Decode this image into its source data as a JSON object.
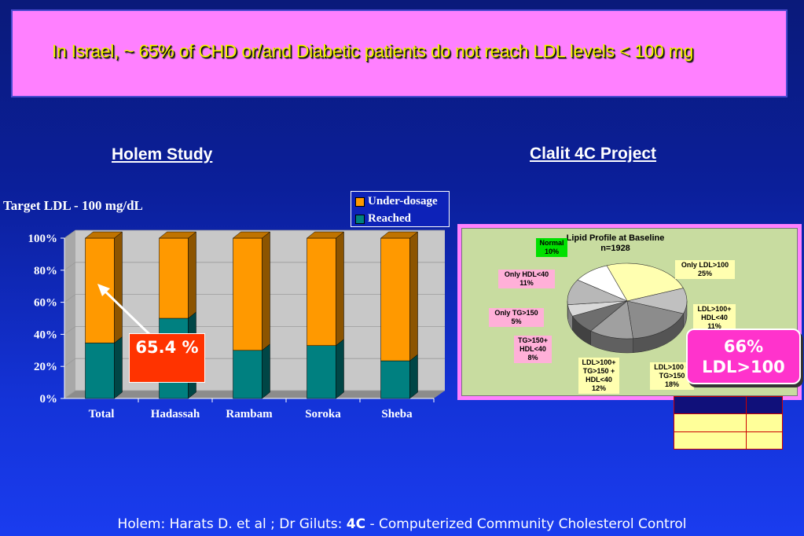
{
  "banner": {
    "text": "In Israel, ~ 65% of CHD or/and Diabetic patients do not reach LDL levels < 100 mg"
  },
  "left": {
    "heading": "Holem Study",
    "target_label": "Target LDL - 100 mg/dL",
    "callout": "65.4 %"
  },
  "right": {
    "heading": "Clalit 4C Project",
    "badge": "66% LDL>100"
  },
  "colors": {
    "under_dosage": "#ff9900",
    "reached": "#008080",
    "banner_bg": "#ff80ff",
    "banner_text": "#f0f000",
    "callout_bg": "#ff3300",
    "badge_bg": "#ff33cc",
    "table_header": "#10107a",
    "table_body": "#ffff99"
  },
  "chart_data": [
    {
      "type": "bar",
      "stacked": true,
      "categories": [
        "Total",
        "Hadassah",
        "Rambam",
        "Soroka",
        "Sheba"
      ],
      "series": [
        {
          "name": "Reached",
          "values": [
            34.6,
            50,
            30,
            33,
            23.5
          ]
        },
        {
          "name": "Under-dosage",
          "values": [
            65.4,
            50,
            70,
            67,
            76.5
          ]
        }
      ],
      "yticks": [
        "0%",
        "20%",
        "40%",
        "60%",
        "80%",
        "100%"
      ],
      "ylim": [
        0,
        100
      ],
      "legend": "top-right"
    },
    {
      "type": "pie",
      "title": "Lipid Profile at Baseline n=1928",
      "slices": [
        {
          "label": "Only LDL>100 25%",
          "value": 25,
          "color": "#ffffb0"
        },
        {
          "label": "LDL>100+ HDL<40 11%",
          "value": 11,
          "color": "#c0c0c0"
        },
        {
          "label": "LDL>100 + TG>150 18%",
          "value": 18,
          "color": "#8c8c8c"
        },
        {
          "label": "LDL>100+ TG>150 + HDL<40 12%",
          "value": 12,
          "color": "#a0a0a0"
        },
        {
          "label": "TG>150+ HDL<40 8%",
          "value": 8,
          "color": "#6e6e6e"
        },
        {
          "label": "Only TG>150 5%",
          "value": 5,
          "color": "#d8d8d8"
        },
        {
          "label": "Only HDL<40 11%",
          "value": 11,
          "color": "#b8b8b8"
        },
        {
          "label": "Normal 10%",
          "value": 10,
          "color": "#ffffff"
        }
      ]
    }
  ]
}
